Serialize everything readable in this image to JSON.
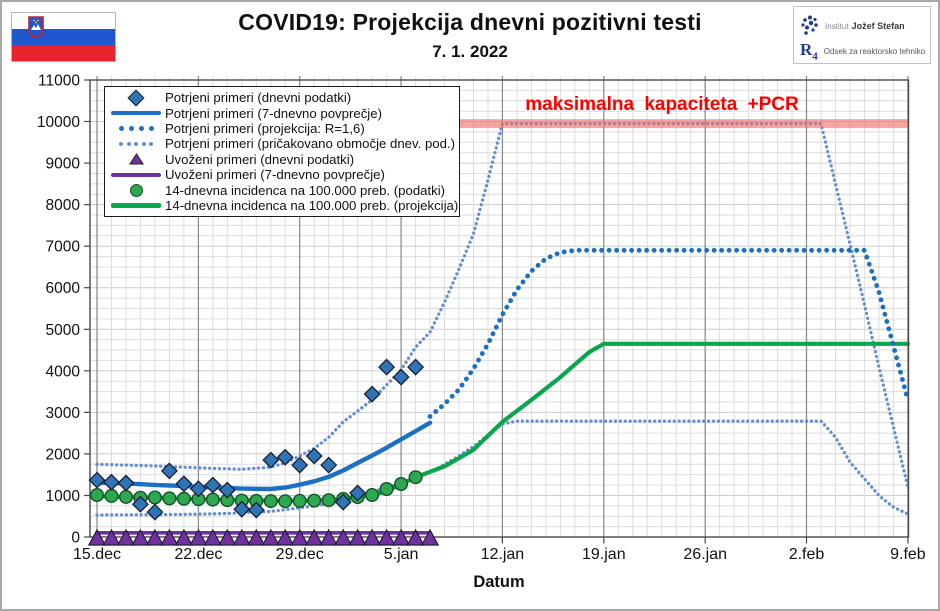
{
  "header": {
    "title": "COVID19: Projekcija dnevni pozitivni testi",
    "date": "7. 1. 2022"
  },
  "flag": {
    "country": "Slovenija"
  },
  "logo": {
    "institute_prefix": "Institut",
    "institute_name": "Jožef Stefan",
    "dept_mark": "R",
    "dept_mark_sub": "4",
    "dept_name": "Odsek za reaktorsko tehniko"
  },
  "legend": {
    "items": [
      {
        "id": "confirmed-daily",
        "marker": "diamond",
        "color": "#2e75b6",
        "label": "Potrjeni primeri (dnevni podatki)"
      },
      {
        "id": "confirmed-avg7",
        "marker": "line",
        "color": "#1c70c4",
        "label": "Potrjeni primeri (7-dnevno povprečje)"
      },
      {
        "id": "confirmed-proj-r16",
        "marker": "dots-large",
        "color": "#1c70c4",
        "label": "Potrjeni primeri (projekcija: R=1,6)"
      },
      {
        "id": "expected-range",
        "marker": "dots-small",
        "color": "#648fd2",
        "label": "Potrjeni primeri (pričakovano območje dnev. pod.)"
      },
      {
        "id": "imported-daily",
        "marker": "triangle",
        "color": "#7030a0",
        "label": "Uvoženi primeri (dnevni podatki)"
      },
      {
        "id": "imported-avg7",
        "marker": "line",
        "color": "#7030a0",
        "label": "Uvoženi primeri (7-dnevno povprečje)"
      },
      {
        "id": "incidence-data",
        "marker": "circle",
        "color": "#2ea84e",
        "label": "14-dnevna incidenca na 100.000 preb. (podatki)"
      },
      {
        "id": "incidence-projection",
        "marker": "line",
        "color": "#0aa64b",
        "label": "14-dnevna incidenca na 100.000 preb. (projekcija)"
      }
    ]
  },
  "chart_data": {
    "type": "line",
    "title": "COVID19: Projekcija dnevni pozitivni testi",
    "x_unit": "days since 15.dec.2021",
    "xlabel": "Datum",
    "ylabel": "",
    "ylim": [
      0,
      11000
    ],
    "y_major_step": 1000,
    "y_minor_step": 250,
    "grid": true,
    "legend_position": "top-left",
    "x_ticks": [
      {
        "day": 0,
        "label": "15.dec"
      },
      {
        "day": 7,
        "label": "22.dec"
      },
      {
        "day": 14,
        "label": "29.dec"
      },
      {
        "day": 21,
        "label": "5.jan"
      },
      {
        "day": 28,
        "label": "12.jan"
      },
      {
        "day": 35,
        "label": "19.jan"
      },
      {
        "day": 42,
        "label": "26.jan"
      },
      {
        "day": 49,
        "label": "2.feb"
      },
      {
        "day": 56,
        "label": "9.feb"
      }
    ],
    "capacity_band": {
      "label": "maksimalna  kapaciteta  +PCR",
      "label_color": "#ff0000",
      "band_color": "#ed6e66",
      "value": 9950,
      "x_start_day": 25,
      "x_end_day": 56
    },
    "series": [
      {
        "id": "expected-range-upper",
        "name": "Potrjeni primeri (pričakovano območje dnev. pod.) - zgornja meja",
        "style": "dots-small",
        "color": "#648fd2",
        "points": [
          [
            0,
            1750
          ],
          [
            2,
            1730
          ],
          [
            4,
            1710
          ],
          [
            6,
            1680
          ],
          [
            8,
            1650
          ],
          [
            10,
            1630
          ],
          [
            12,
            1680
          ],
          [
            13,
            1780
          ],
          [
            14,
            1950
          ],
          [
            15,
            2130
          ],
          [
            16,
            2400
          ],
          [
            17,
            2770
          ],
          [
            18,
            3030
          ],
          [
            19,
            3300
          ],
          [
            20,
            3660
          ],
          [
            21,
            4020
          ],
          [
            22,
            4570
          ],
          [
            23,
            4930
          ],
          [
            24,
            5650
          ],
          [
            25,
            6450
          ],
          [
            26,
            7300
          ],
          [
            27,
            8600
          ],
          [
            28,
            9950
          ],
          [
            50,
            9950
          ],
          [
            51,
            8500
          ],
          [
            52,
            7050
          ],
          [
            53,
            5600
          ],
          [
            54,
            4100
          ],
          [
            55,
            2650
          ],
          [
            56,
            1200
          ]
        ]
      },
      {
        "id": "expected-range-lower",
        "name": "Potrjeni primeri (pričakovano območje dnev. pod.) - spodnja meja",
        "style": "dots-small",
        "color": "#648fd2",
        "points": [
          [
            0,
            530
          ],
          [
            3,
            535
          ],
          [
            6,
            545
          ],
          [
            9,
            565
          ],
          [
            12,
            615
          ],
          [
            14,
            700
          ],
          [
            16,
            800
          ],
          [
            17,
            890
          ],
          [
            18,
            990
          ],
          [
            19,
            1090
          ],
          [
            20,
            1190
          ],
          [
            21,
            1300
          ],
          [
            22,
            1420
          ],
          [
            23,
            1550
          ],
          [
            24,
            1750
          ],
          [
            25,
            1950
          ],
          [
            26,
            2180
          ],
          [
            27,
            2450
          ],
          [
            28,
            2720
          ],
          [
            29,
            2790
          ],
          [
            50,
            2790
          ],
          [
            51,
            2400
          ],
          [
            52,
            1800
          ],
          [
            53,
            1400
          ],
          [
            54,
            1000
          ],
          [
            55,
            720
          ],
          [
            56,
            550
          ]
        ]
      },
      {
        "id": "incidence-projection",
        "name": "14-dnevna incidenca na 100.000 preb. (projekcija)",
        "style": "line",
        "width": 4.2,
        "color": "#0aa64b",
        "points": [
          [
            0,
            985
          ],
          [
            3,
            950
          ],
          [
            6,
            922
          ],
          [
            9,
            895
          ],
          [
            12,
            872
          ],
          [
            14,
            868
          ],
          [
            16,
            885
          ],
          [
            17,
            915
          ],
          [
            18,
            960
          ],
          [
            19,
            1010
          ],
          [
            20,
            1100
          ],
          [
            21,
            1270
          ],
          [
            22,
            1440
          ],
          [
            24,
            1700
          ],
          [
            26,
            2100
          ],
          [
            28,
            2770
          ],
          [
            30,
            3300
          ],
          [
            32,
            3850
          ],
          [
            33,
            4150
          ],
          [
            34,
            4450
          ],
          [
            35,
            4650
          ],
          [
            56,
            4650
          ]
        ]
      },
      {
        "id": "confirmed-avg7",
        "name": "Potrjeni primeri (7-dnevno povprečje)",
        "style": "line",
        "width": 4.4,
        "color": "#1c70c4",
        "points": [
          [
            0,
            1310
          ],
          [
            2,
            1290
          ],
          [
            4,
            1255
          ],
          [
            6,
            1225
          ],
          [
            8,
            1195
          ],
          [
            10,
            1165
          ],
          [
            12,
            1155
          ],
          [
            13,
            1190
          ],
          [
            14,
            1260
          ],
          [
            15,
            1340
          ],
          [
            16,
            1450
          ],
          [
            17,
            1600
          ],
          [
            18,
            1780
          ],
          [
            19,
            1960
          ],
          [
            20,
            2150
          ],
          [
            21,
            2350
          ],
          [
            22,
            2550
          ],
          [
            23,
            2750
          ]
        ]
      },
      {
        "id": "confirmed-proj-r16",
        "name": "Potrjeni primeri (projekcija: R=1,6)",
        "style": "dots-large",
        "color": "#1c70c4",
        "points": [
          [
            23,
            2900
          ],
          [
            24,
            3200
          ],
          [
            25,
            3550
          ],
          [
            26,
            4050
          ],
          [
            27,
            4650
          ],
          [
            28,
            5350
          ],
          [
            29,
            5950
          ],
          [
            30,
            6400
          ],
          [
            31,
            6700
          ],
          [
            32,
            6850
          ],
          [
            33,
            6900
          ],
          [
            53,
            6900
          ],
          [
            54,
            5900
          ],
          [
            55,
            4600
          ],
          [
            56,
            3300
          ]
        ]
      },
      {
        "id": "imported-avg7",
        "name": "Uvoženi primeri (7-dnevno povprečje)",
        "style": "line",
        "width": 3.6,
        "color": "#7030a0",
        "points": [
          [
            0,
            100
          ],
          [
            23,
            100
          ]
        ]
      },
      {
        "id": "imported-daily",
        "name": "Uvoženi primeri (dnevni podatki)",
        "style": "markers-triangle",
        "color": "#7030a0",
        "points": [
          [
            0,
            0
          ],
          [
            1,
            0
          ],
          [
            2,
            0
          ],
          [
            3,
            0
          ],
          [
            4,
            0
          ],
          [
            5,
            0
          ],
          [
            6,
            0
          ],
          [
            7,
            0
          ],
          [
            8,
            0
          ],
          [
            9,
            0
          ],
          [
            10,
            0
          ],
          [
            11,
            0
          ],
          [
            12,
            0
          ],
          [
            13,
            0
          ],
          [
            14,
            0
          ],
          [
            15,
            0
          ],
          [
            16,
            0
          ],
          [
            17,
            0
          ],
          [
            18,
            0
          ],
          [
            19,
            0
          ],
          [
            20,
            0
          ],
          [
            21,
            0
          ],
          [
            22,
            0
          ],
          [
            23,
            0
          ]
        ]
      },
      {
        "id": "incidence-data",
        "name": "14-dnevna incidenca na 100.000 preb. (podatki)",
        "style": "markers-circle",
        "color": "#2ea84e",
        "points": [
          [
            0,
            1010
          ],
          [
            1,
            990
          ],
          [
            2,
            965
          ],
          [
            3,
            945
          ],
          [
            4,
            950
          ],
          [
            5,
            930
          ],
          [
            6,
            920
          ],
          [
            7,
            910
          ],
          [
            8,
            900
          ],
          [
            9,
            885
          ],
          [
            10,
            875
          ],
          [
            11,
            870
          ],
          [
            12,
            865
          ],
          [
            13,
            862
          ],
          [
            14,
            868
          ],
          [
            15,
            875
          ],
          [
            16,
            885
          ],
          [
            17,
            915
          ],
          [
            18,
            960
          ],
          [
            19,
            1010
          ],
          [
            20,
            1155
          ],
          [
            21,
            1276
          ],
          [
            22,
            1440
          ]
        ]
      },
      {
        "id": "confirmed-daily",
        "name": "Potrjeni primeri (dnevni podatki)",
        "style": "markers-diamond",
        "color": "#2e75b6",
        "points": [
          [
            0,
            1370
          ],
          [
            1,
            1320
          ],
          [
            2,
            1300
          ],
          [
            3,
            790
          ],
          [
            4,
            600
          ],
          [
            5,
            1590
          ],
          [
            6,
            1280
          ],
          [
            7,
            1160
          ],
          [
            8,
            1250
          ],
          [
            9,
            1130
          ],
          [
            10,
            670
          ],
          [
            11,
            650
          ],
          [
            12,
            1850
          ],
          [
            13,
            1920
          ],
          [
            14,
            1730
          ],
          [
            15,
            1950
          ],
          [
            16,
            1730
          ],
          [
            17,
            840
          ],
          [
            18,
            1060
          ],
          [
            19,
            3440
          ],
          [
            20,
            4090
          ],
          [
            21,
            3850
          ],
          [
            22,
            4090
          ]
        ]
      }
    ]
  }
}
